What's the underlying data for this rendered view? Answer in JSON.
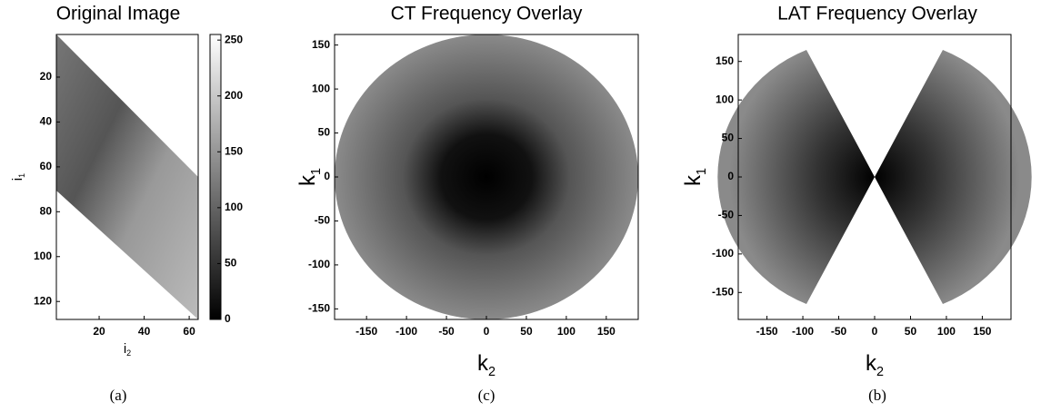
{
  "panels": [
    {
      "title": "Original Image",
      "xlabel": {
        "text": "i",
        "sub": "2"
      },
      "ylabel": {
        "text": "i",
        "sub": "1"
      },
      "xlim": [
        1,
        64
      ],
      "ylim": [
        1,
        128
      ],
      "y_reversed": true,
      "xticks": [
        20,
        40,
        60
      ],
      "yticks": [
        20,
        40,
        60,
        80,
        100,
        120
      ],
      "colorbar": {
        "lim": [
          0,
          255
        ],
        "ticks": [
          0,
          50,
          100,
          150,
          200,
          250
        ]
      },
      "caption": "(a)"
    },
    {
      "title": "CT Frequency Overlay",
      "xlabel": {
        "text": "k",
        "sub": "2"
      },
      "ylabel": {
        "text": "k",
        "sub": "1"
      },
      "xlim": [
        -190,
        190
      ],
      "ylim": [
        -162,
        162
      ],
      "y_reversed": false,
      "xticks": [
        -150,
        -100,
        -50,
        0,
        50,
        100,
        150
      ],
      "yticks": [
        -150,
        -100,
        -50,
        0,
        50,
        100,
        150
      ],
      "caption": "(c)"
    },
    {
      "title": "LAT Frequency Overlay",
      "xlabel": {
        "text": "k",
        "sub": "2"
      },
      "ylabel": {
        "text": "k",
        "sub": "1"
      },
      "xlim": [
        -190,
        190
      ],
      "ylim": [
        -185,
        185
      ],
      "y_reversed": false,
      "xticks": [
        -150,
        -100,
        -50,
        0,
        50,
        100,
        150
      ],
      "yticks": [
        -150,
        -100,
        -50,
        0,
        50,
        100,
        150
      ],
      "caption": "(b)"
    }
  ]
}
